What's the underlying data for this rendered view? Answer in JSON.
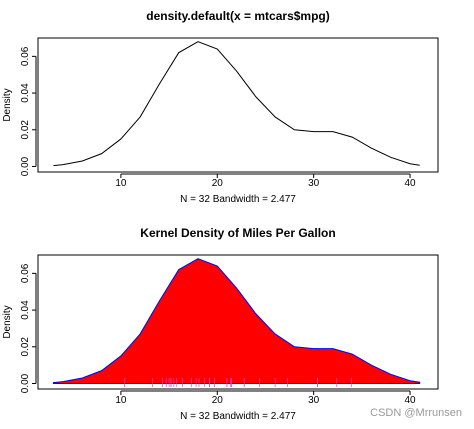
{
  "chart_data": [
    {
      "type": "line",
      "title": "density.default(x = mtcars$mpg)",
      "x_label": "N = 32   Bandwidth = 2.477",
      "y_label": "Density",
      "x": [
        3,
        4,
        6,
        8,
        10,
        12,
        14,
        16,
        18,
        20,
        22,
        24,
        26,
        28,
        30,
        32,
        34,
        36,
        38,
        40,
        41
      ],
      "series": [
        {
          "color": "#000000",
          "values": [
            0.0005,
            0.001,
            0.003,
            0.007,
            0.015,
            0.027,
            0.045,
            0.062,
            0.068,
            0.064,
            0.052,
            0.038,
            0.027,
            0.02,
            0.019,
            0.019,
            0.016,
            0.01,
            0.005,
            0.0015,
            0.0007
          ]
        }
      ],
      "xlim": [
        1.4,
        42.9
      ],
      "ylim": [
        -0.003,
        0.07
      ],
      "xticks": [
        10,
        20,
        30,
        40
      ],
      "yticks": [
        {
          "value": 0,
          "label": "0.00"
        },
        0.02,
        0.04,
        0.06
      ]
    },
    {
      "type": "area",
      "title": "Kernel Density of Miles Per Gallon",
      "x_label": "N = 32   Bandwidth = 2.477",
      "y_label": "Density",
      "x": [
        3,
        4,
        6,
        8,
        10,
        12,
        14,
        16,
        18,
        20,
        22,
        24,
        26,
        28,
        30,
        32,
        34,
        36,
        38,
        40,
        41
      ],
      "series": [
        {
          "color": "#ff0000",
          "border": "#0000ff",
          "values": [
            0.0005,
            0.001,
            0.003,
            0.007,
            0.015,
            0.027,
            0.045,
            0.062,
            0.068,
            0.064,
            0.052,
            0.038,
            0.027,
            0.02,
            0.019,
            0.019,
            0.016,
            0.01,
            0.005,
            0.0015,
            0.0007
          ]
        }
      ],
      "rug": [
        21,
        21,
        22.8,
        21.4,
        18.7,
        18.1,
        14.3,
        24.4,
        22.8,
        19.2,
        17.8,
        16.4,
        17.3,
        15.2,
        10.4,
        10.4,
        14.7,
        32.4,
        30.4,
        33.9,
        21.5,
        15.5,
        15.2,
        13.3,
        19.2,
        27.3,
        26,
        30.4,
        15.8,
        19.7,
        15,
        21.4
      ],
      "rug_color": "#cc44cc",
      "xlim": [
        1.4,
        42.9
      ],
      "ylim": [
        -0.003,
        0.07
      ],
      "xticks": [
        10,
        20,
        30,
        40
      ],
      "yticks": [
        {
          "value": 0,
          "label": "0.00"
        },
        0.02,
        0.04,
        0.06
      ]
    }
  ],
  "watermark": "CSDN @Mrrunsen"
}
